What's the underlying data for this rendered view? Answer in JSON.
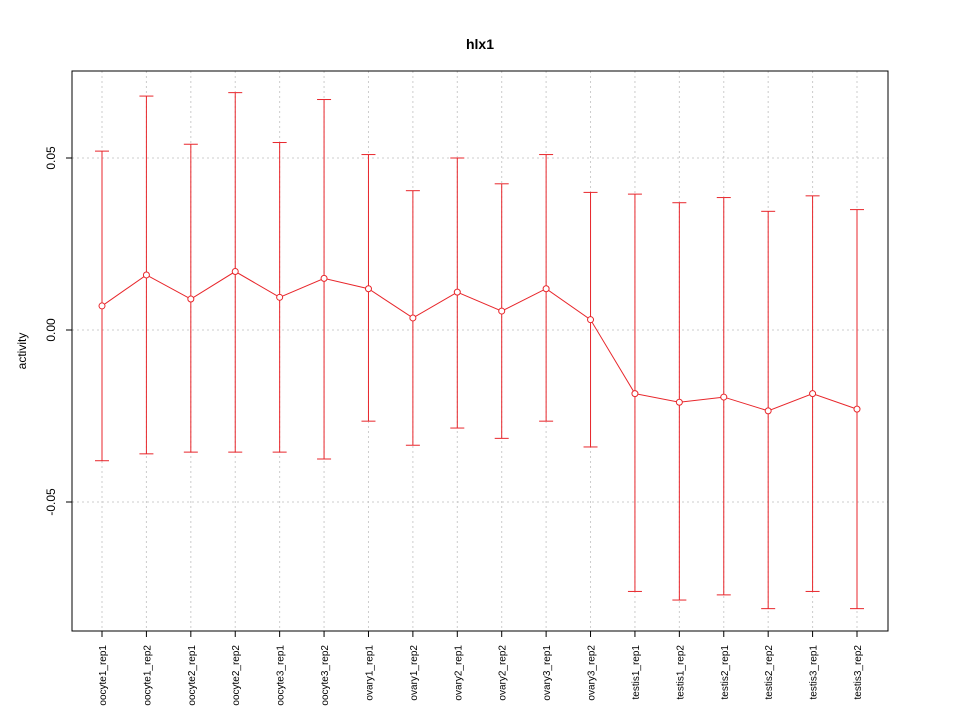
{
  "chart_data": {
    "type": "line",
    "title": "hlx1",
    "xlabel": "",
    "ylabel": "activity",
    "ylim": [
      -0.087,
      0.075
    ],
    "yticks": [
      -0.05,
      0.0,
      0.05
    ],
    "ytick_labels": [
      "-0.05",
      "0.00",
      "0.05"
    ],
    "grid": true,
    "color": "#e8262b",
    "categories": [
      "oocyte1_rep1",
      "oocyte1_rep2",
      "oocyte2_rep1",
      "oocyte2_rep2",
      "oocyte3_rep1",
      "oocyte3_rep2",
      "ovary1_rep1",
      "ovary1_rep2",
      "ovary2_rep1",
      "ovary2_rep2",
      "ovary3_rep1",
      "ovary3_rep2",
      "testis1_rep1",
      "testis1_rep2",
      "testis2_rep1",
      "testis2_rep2",
      "testis3_rep1",
      "testis3_rep2"
    ],
    "series": [
      {
        "values": [
          0.007,
          0.016,
          0.009,
          0.017,
          0.0095,
          0.015,
          0.012,
          0.0035,
          0.011,
          0.0055,
          0.012,
          0.003,
          -0.0185,
          -0.021,
          -0.0195,
          -0.0235,
          -0.0185,
          -0.023
        ],
        "upper": [
          0.052,
          0.068,
          0.054,
          0.069,
          0.0545,
          0.067,
          0.051,
          0.0405,
          0.05,
          0.0425,
          0.051,
          0.04,
          0.0395,
          0.037,
          0.0385,
          0.0345,
          0.039,
          0.035
        ],
        "lower": [
          -0.038,
          -0.036,
          -0.0355,
          -0.0355,
          -0.0355,
          -0.0375,
          -0.0265,
          -0.0335,
          -0.0285,
          -0.0315,
          -0.0265,
          -0.034,
          -0.076,
          -0.0785,
          -0.077,
          -0.081,
          -0.076,
          -0.081
        ]
      }
    ]
  }
}
